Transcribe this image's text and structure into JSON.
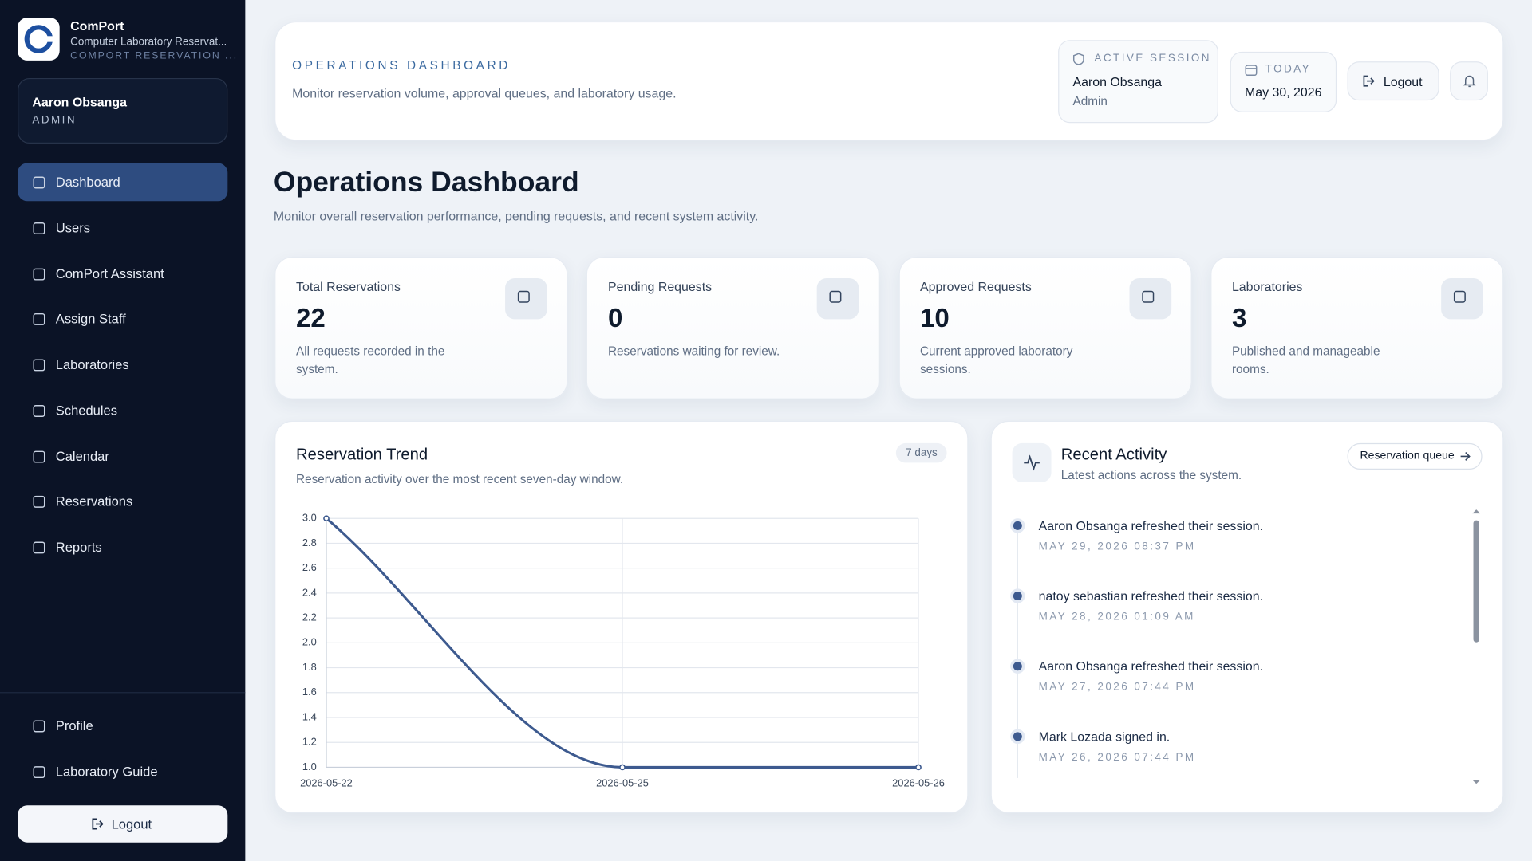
{
  "sidebar": {
    "brand": "ComPort",
    "subtitle": "Computer Laboratory Reservat...",
    "tagline": "COMPORT RESERVATION ...",
    "user": {
      "name": "Aaron Obsanga",
      "role": "ADMIN"
    },
    "nav": [
      "Dashboard",
      "Users",
      "ComPort Assistant",
      "Assign Staff",
      "Laboratories",
      "Schedules",
      "Calendar",
      "Reservations",
      "Reports"
    ],
    "footer_nav": [
      "Profile",
      "Laboratory Guide"
    ],
    "logout": "Logout"
  },
  "header": {
    "eyebrow": "OPERATIONS DASHBOARD",
    "description": "Monitor reservation volume, approval queues, and laboratory usage.",
    "session": {
      "label": "ACTIVE SESSION",
      "name": "Aaron Obsanga",
      "role": "Admin"
    },
    "today": {
      "label": "TODAY",
      "date": "May 30, 2026"
    },
    "logout": "Logout"
  },
  "page": {
    "title": "Operations Dashboard",
    "subtitle": "Monitor overall reservation performance, pending requests, and recent system activity."
  },
  "stats": [
    {
      "label": "Total Reservations",
      "value": 22,
      "description": "All requests recorded in the system."
    },
    {
      "label": "Pending Requests",
      "value": 0,
      "description": "Reservations waiting for review."
    },
    {
      "label": "Approved Requests",
      "value": 10,
      "description": "Current approved laboratory sessions."
    },
    {
      "label": "Laboratories",
      "value": 3,
      "description": "Published and manageable rooms."
    }
  ],
  "chart_data": {
    "type": "line",
    "title": "Reservation Trend",
    "subtitle": "Reservation activity over the most recent seven-day window.",
    "badge": "7 days",
    "categories": [
      "2026-05-22",
      "2026-05-25",
      "2026-05-26"
    ],
    "values": [
      3,
      1,
      1
    ],
    "color": "#3d5a8f",
    "ylim": [
      1,
      3
    ],
    "yticks": [
      {
        "value": 1,
        "label": "1.0"
      },
      {
        "value": 1.2,
        "label": "1.2"
      },
      {
        "value": 1.4,
        "label": "1.4"
      },
      {
        "value": 1.6,
        "label": "1.6"
      },
      {
        "value": 1.8,
        "label": "1.8"
      },
      {
        "value": 2,
        "label": "2.0"
      },
      {
        "value": 2.2,
        "label": "2.2"
      },
      {
        "value": 2.4,
        "label": "2.4"
      },
      {
        "value": 2.6,
        "label": "2.6"
      },
      {
        "value": 2.8,
        "label": "2.8"
      },
      {
        "value": 3,
        "label": "3.0"
      }
    ],
    "grid": true
  },
  "activity": {
    "title": "Recent Activity",
    "subtitle": "Latest actions across the system.",
    "link": "Reservation queue",
    "items": [
      {
        "text": "Aaron Obsanga refreshed their session.",
        "time": "MAY 29, 2026 08:37 PM"
      },
      {
        "text": "natoy sebastian refreshed their session.",
        "time": "MAY 28, 2026 01:09 AM"
      },
      {
        "text": "Aaron Obsanga refreshed their session.",
        "time": "MAY 27, 2026 07:44 PM"
      },
      {
        "text": "Mark Lozada signed in.",
        "time": "MAY 26, 2026 07:44 PM"
      }
    ]
  }
}
